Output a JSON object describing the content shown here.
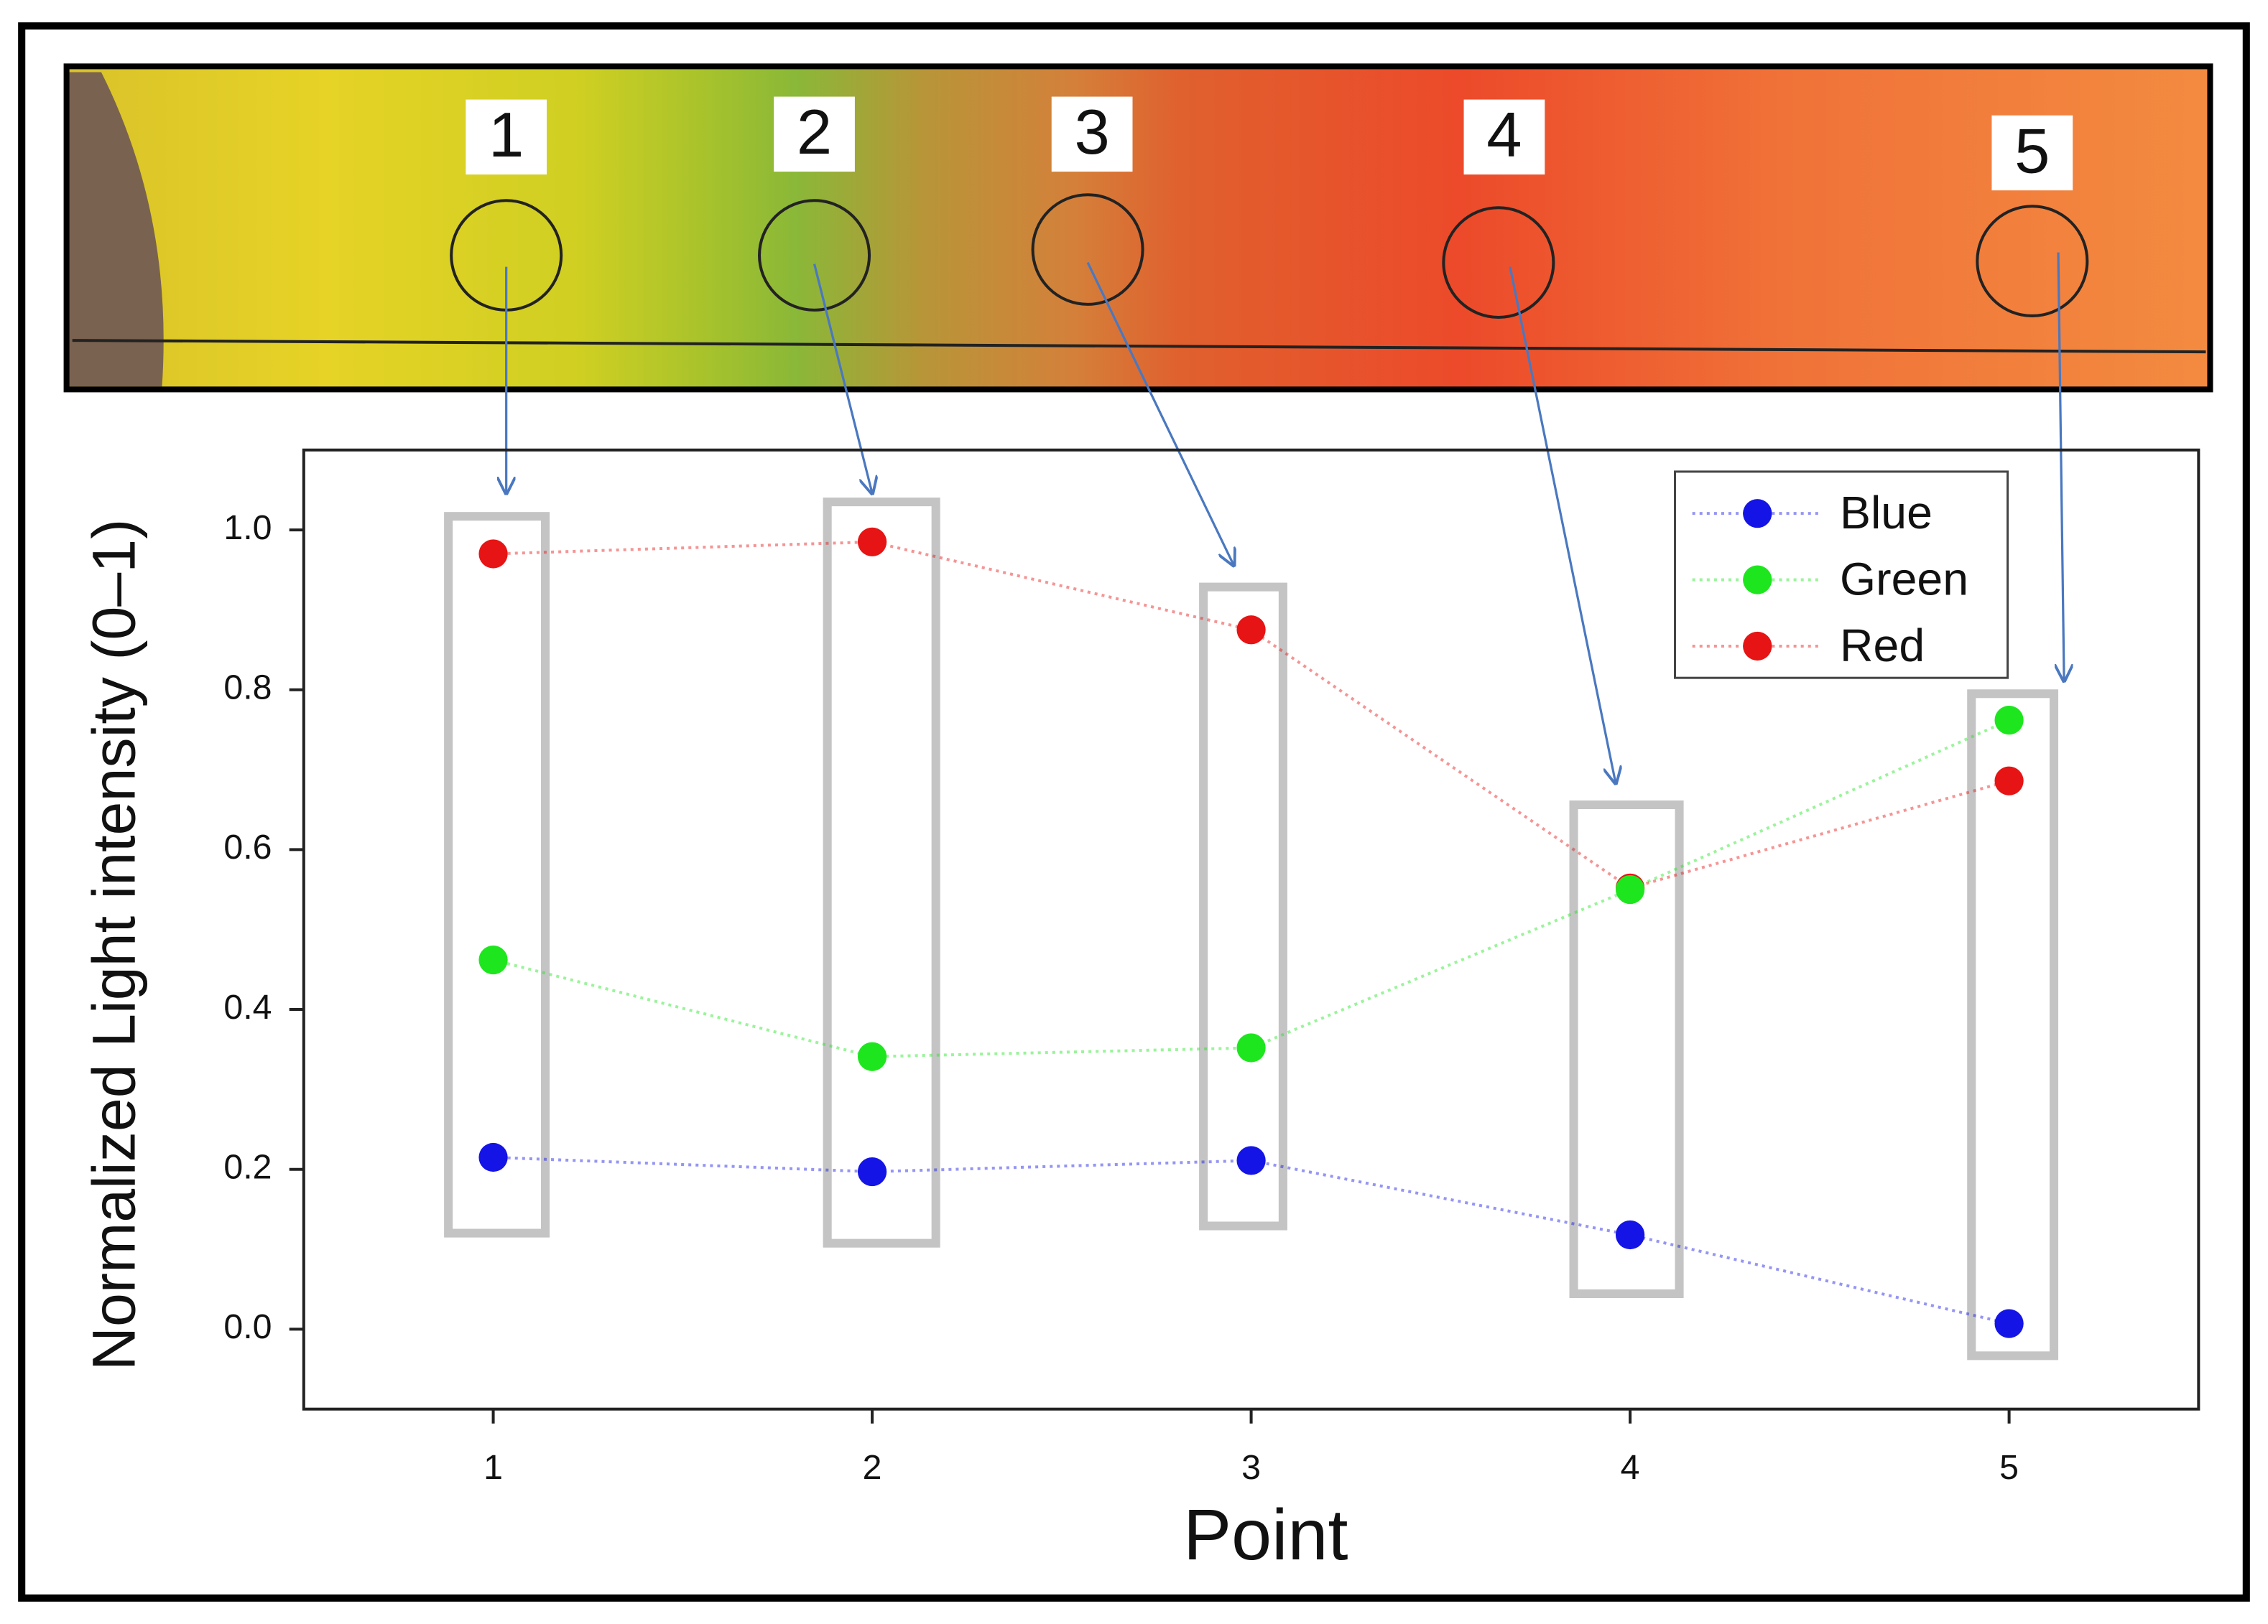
{
  "photo_labels": [
    "1",
    "2",
    "3",
    "4",
    "5"
  ],
  "chart_data": {
    "type": "line",
    "xlabel": "Point",
    "ylabel": "Normalized Light intensity (0–1)",
    "x": [
      1,
      2,
      3,
      4,
      5
    ],
    "series": [
      {
        "name": "Blue",
        "color": "#1414e6",
        "values": [
          0.215,
          0.197,
          0.211,
          0.118,
          0.007
        ]
      },
      {
        "name": "Green",
        "color": "#1ee61e",
        "values": [
          0.462,
          0.341,
          0.352,
          0.55,
          0.762
        ]
      },
      {
        "name": "Red",
        "color": "#e61414",
        "values": [
          0.97,
          0.985,
          0.875,
          0.552,
          0.686
        ]
      }
    ],
    "xlim": [
      0.5,
      5.5
    ],
    "ylim": [
      -0.1,
      1.1
    ],
    "xticks": [
      1,
      2,
      3,
      4,
      5
    ],
    "yticks": [
      {
        "value": 0,
        "label": "0.0"
      },
      0.2,
      0.4,
      0.6,
      0.8,
      {
        "value": 1,
        "label": "1.0"
      }
    ],
    "grid": false,
    "legend_loc": "upper right",
    "line_style": "dotted"
  }
}
